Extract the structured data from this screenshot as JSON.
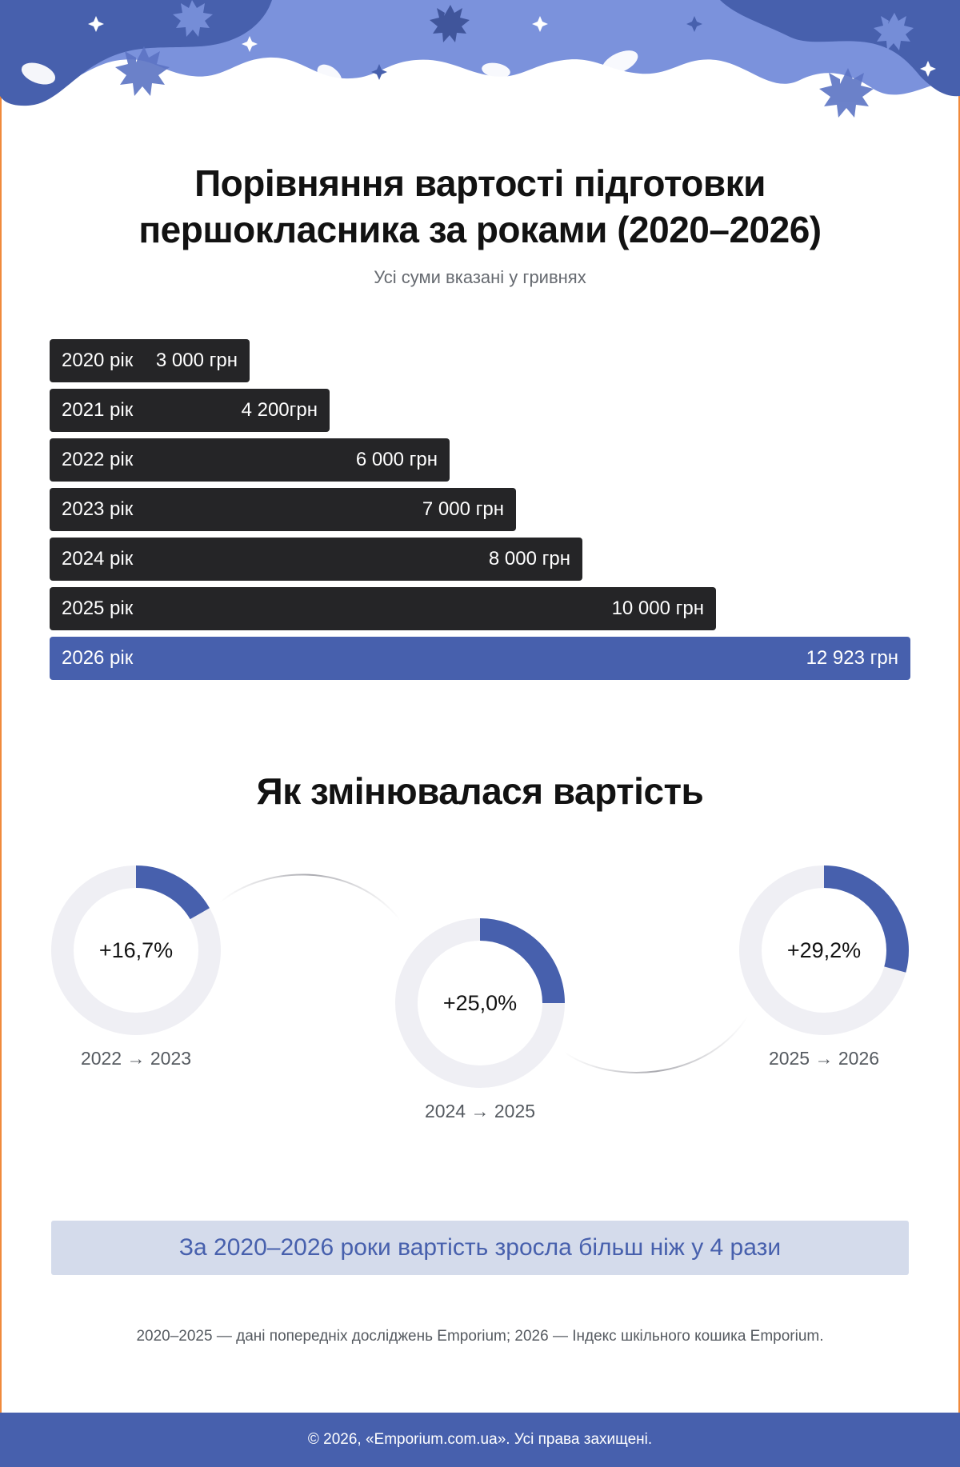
{
  "title_line1": "Порівняння вартості підготовки",
  "title_line2": "першокласника за роками (2020–2026)",
  "subtitle": "Усі суми вказані у гривнях",
  "colors": {
    "bar_dark": "#252527",
    "bar_highlight": "#4760ad",
    "ring_track": "#efeff4",
    "ring_fill": "#4760ad",
    "header_dark": "#4760ad",
    "header_light": "#7b92dc",
    "accent_line": "#f08a3c"
  },
  "chart_data": [
    {
      "type": "bar",
      "orientation": "horizontal",
      "categories": [
        "2020 рік",
        "2021 рік",
        "2022 рік",
        "2023 рік",
        "2024 рік",
        "2025 рік",
        "2026 рік"
      ],
      "values": [
        3000,
        4200,
        6000,
        7000,
        8000,
        10000,
        12923
      ],
      "value_labels": [
        "3 000 грн",
        "4 200грн",
        "6 000 грн",
        "7 000 грн",
        "8 000 грн",
        "10 000 грн",
        "12 923 грн"
      ],
      "highlight_index": 6,
      "xlim": [
        0,
        12923
      ],
      "unit": "грн"
    },
    {
      "type": "pie",
      "variant": "donut-progress",
      "items": [
        {
          "label": "2022 → 2023",
          "value_text": "+16,7%",
          "value": 16.7
        },
        {
          "label": "2024 → 2025",
          "value_text": "+25,0%",
          "value": 25.0
        },
        {
          "label": "2025 → 2026",
          "value_text": "+29,2%",
          "value": 29.2
        }
      ]
    }
  ],
  "section_title": "Як змінювалася вартість",
  "summary": "За 2020–2026 роки вартість зросла більш ніж у 4 рази",
  "source_note": "2020–2025 — дані попередніх досліджень Emporium; 2026 — Індекс шкільного кошика Emporium.",
  "footer": "© 2026, «Emporium.com.ua». Усі права захищені."
}
